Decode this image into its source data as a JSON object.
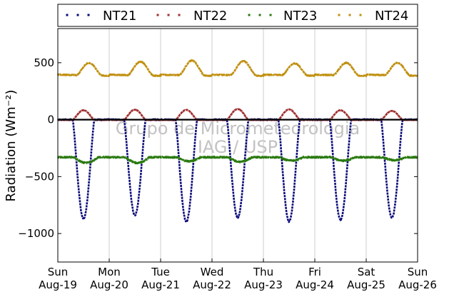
{
  "chart_data": {
    "type": "scatter",
    "title": "",
    "ylabel": "Radiation (Wm⁻²)",
    "xlabel": "",
    "ylim": [
      -1250,
      800
    ],
    "y_ticks": [
      -1000,
      -500,
      0,
      500
    ],
    "xlim": [
      0,
      7
    ],
    "x_ticks": [
      {
        "day": "Sun",
        "date": "Aug-19"
      },
      {
        "day": "Mon",
        "date": "Aug-20"
      },
      {
        "day": "Tue",
        "date": "Aug-21"
      },
      {
        "day": "Wed",
        "date": "Aug-22"
      },
      {
        "day": "Thu",
        "date": "Aug-23"
      },
      {
        "day": "Fri",
        "date": "Aug-24"
      },
      {
        "day": "Sat",
        "date": "Aug-25"
      },
      {
        "day": "Sun",
        "date": "Aug-26"
      }
    ],
    "grid": "vertical",
    "legend_position": "top",
    "watermark": [
      "Grupo de Micrometeorologia",
      "IAG / USP"
    ],
    "series": [
      {
        "name": "NT21",
        "color": "#0a0a7a",
        "base": 0,
        "daily_peak": [
          -870,
          -840,
          -895,
          -860,
          -895,
          -880,
          -860
        ]
      },
      {
        "name": "NT22",
        "color": "#a03030",
        "base": -2,
        "daily_peak": [
          85,
          90,
          88,
          95,
          92,
          85,
          78
        ]
      },
      {
        "name": "NT23",
        "color": "#2a7a10",
        "base": -330,
        "daily_peak": [
          -50,
          -50,
          -35,
          -40,
          -30,
          -30,
          -25
        ]
      },
      {
        "name": "NT24",
        "color": "#c09010",
        "base": 395,
        "daily_peak": [
          110,
          120,
          130,
          125,
          105,
          110,
          110
        ]
      }
    ]
  }
}
